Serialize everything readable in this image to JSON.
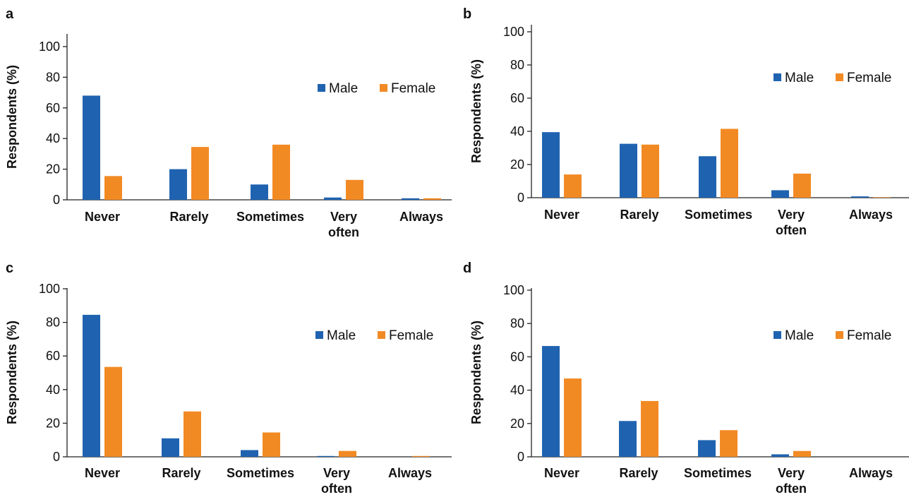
{
  "colors": {
    "male": "#1f63b0",
    "female": "#f28a24"
  },
  "chart_data": [
    {
      "panel": "a",
      "type": "bar",
      "categories": [
        [
          "Never"
        ],
        [
          "Rarely"
        ],
        [
          "Sometimes"
        ],
        [
          "Very",
          "often"
        ],
        [
          "Always"
        ]
      ],
      "series": [
        {
          "name": "Male",
          "values": [
            68,
            20,
            10,
            1.5,
            1
          ]
        },
        {
          "name": "Female",
          "values": [
            15.5,
            34.5,
            36,
            13,
            1
          ]
        }
      ],
      "ylabel": "Respondents (%)",
      "ylim": [
        0,
        100
      ],
      "yticks": [
        "0",
        "20",
        "40",
        "60",
        "80",
        "100"
      ],
      "legend": "right",
      "grid": false
    },
    {
      "panel": "b",
      "type": "bar",
      "categories": [
        [
          "Never"
        ],
        [
          "Rarely"
        ],
        [
          "Sometimes"
        ],
        [
          "Very",
          "often"
        ],
        [
          "Always"
        ]
      ],
      "series": [
        {
          "name": "Male",
          "values": [
            39.5,
            32.5,
            25,
            4.5,
            0.8
          ]
        },
        {
          "name": "Female",
          "values": [
            14,
            32,
            41.5,
            14.5,
            0.3
          ]
        }
      ],
      "ylabel": "Respondents (%)",
      "ylim": [
        0,
        100
      ],
      "yticks": [
        "0",
        "20",
        "40",
        "60",
        "80",
        "100"
      ],
      "legend": "right",
      "grid": false
    },
    {
      "panel": "c",
      "type": "bar",
      "categories": [
        [
          "Never"
        ],
        [
          "Rarely"
        ],
        [
          "Sometimes"
        ],
        [
          "Very",
          "often"
        ],
        [
          "Always"
        ]
      ],
      "series": [
        {
          "name": "Male",
          "values": [
            84.5,
            11,
            4,
            0.5,
            0
          ]
        },
        {
          "name": "Female",
          "values": [
            53.5,
            27,
            14.5,
            3.5,
            0.5
          ]
        }
      ],
      "ylabel": "Respondents (%)",
      "ylim": [
        0,
        100
      ],
      "yticks": [
        "0",
        "20",
        "40",
        "60",
        "80",
        "100"
      ],
      "legend": "right",
      "grid": false
    },
    {
      "panel": "d",
      "type": "bar",
      "categories": [
        [
          "Never"
        ],
        [
          "Rarely"
        ],
        [
          "Sometimes"
        ],
        [
          "Very",
          "often"
        ],
        [
          "Always"
        ]
      ],
      "series": [
        {
          "name": "Male",
          "values": [
            66.5,
            21.5,
            10,
            1.5,
            0
          ]
        },
        {
          "name": "Female",
          "values": [
            47,
            33.5,
            16,
            3.5,
            0
          ]
        }
      ],
      "ylabel": "Respondents (%)",
      "ylim": [
        0,
        100
      ],
      "yticks": [
        "0",
        "20",
        "40",
        "60",
        "80",
        "100"
      ],
      "legend": "right",
      "grid": false
    }
  ]
}
